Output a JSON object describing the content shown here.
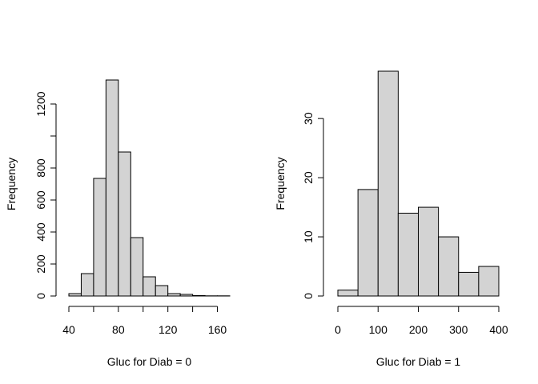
{
  "chart_data": [
    {
      "type": "histogram",
      "title": "",
      "xlabel": "Gluc for Diab = 0",
      "ylabel": "Frequency",
      "bins": [
        {
          "start": 40,
          "end": 50,
          "count": 15
        },
        {
          "start": 50,
          "end": 60,
          "count": 140
        },
        {
          "start": 60,
          "end": 70,
          "count": 735
        },
        {
          "start": 70,
          "end": 80,
          "count": 1350
        },
        {
          "start": 80,
          "end": 90,
          "count": 900
        },
        {
          "start": 90,
          "end": 100,
          "count": 365
        },
        {
          "start": 100,
          "end": 110,
          "count": 120
        },
        {
          "start": 110,
          "end": 120,
          "count": 65
        },
        {
          "start": 120,
          "end": 130,
          "count": 15
        },
        {
          "start": 130,
          "end": 140,
          "count": 10
        },
        {
          "start": 140,
          "end": 150,
          "count": 3
        },
        {
          "start": 150,
          "end": 160,
          "count": 1
        },
        {
          "start": 160,
          "end": 170,
          "count": 1
        }
      ],
      "x_ticks_minor": [
        40,
        60,
        80,
        100,
        120,
        140,
        160
      ],
      "x_tick_labels": [
        "40",
        "80",
        "120",
        "160"
      ],
      "x_tick_label_values": [
        40,
        80,
        120,
        160
      ],
      "xlim": [
        40,
        170
      ],
      "y_ticks": [
        0,
        200,
        400,
        600,
        800,
        1000,
        1200
      ],
      "y_tick_labels": [
        "0",
        "200",
        "400",
        "600",
        "800",
        "1200"
      ],
      "y_tick_label_values": [
        0,
        200,
        400,
        600,
        800,
        1200
      ],
      "ylim": [
        0,
        1400
      ],
      "bar_fill": "#d3d3d3",
      "bar_stroke": "#000000",
      "grid": false
    },
    {
      "type": "histogram",
      "title": "",
      "xlabel": "Gluc for Diab = 1",
      "ylabel": "Frequency",
      "bins": [
        {
          "start": 0,
          "end": 50,
          "count": 1
        },
        {
          "start": 50,
          "end": 100,
          "count": 18
        },
        {
          "start": 100,
          "end": 150,
          "count": 38
        },
        {
          "start": 150,
          "end": 200,
          "count": 14
        },
        {
          "start": 200,
          "end": 250,
          "count": 15
        },
        {
          "start": 250,
          "end": 300,
          "count": 10
        },
        {
          "start": 300,
          "end": 350,
          "count": 4
        },
        {
          "start": 350,
          "end": 400,
          "count": 5
        }
      ],
      "x_ticks_minor": [
        0,
        100,
        200,
        300,
        400
      ],
      "x_tick_labels": [
        "0",
        "100",
        "200",
        "300",
        "400"
      ],
      "x_tick_label_values": [
        0,
        100,
        200,
        300,
        400
      ],
      "xlim": [
        0,
        400
      ],
      "y_ticks": [
        0,
        10,
        20,
        30
      ],
      "y_tick_labels": [
        "0",
        "10",
        "20",
        "30"
      ],
      "y_tick_label_values": [
        0,
        10,
        20,
        30
      ],
      "ylim": [
        0,
        38
      ],
      "bar_fill": "#d3d3d3",
      "bar_stroke": "#000000",
      "grid": false
    }
  ]
}
